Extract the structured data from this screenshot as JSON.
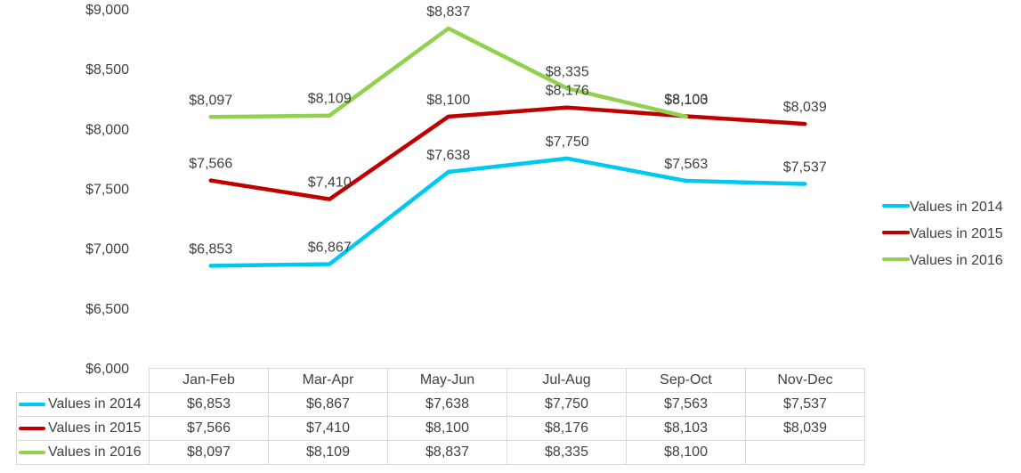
{
  "chart_data": {
    "type": "line",
    "categories": [
      "Jan-Feb",
      "Mar-Apr",
      "May-Jun",
      "Jul-Aug",
      "Sep-Oct",
      "Nov-Dec"
    ],
    "series": [
      {
        "name": "Values in 2014",
        "color": "#00c8f0",
        "values": [
          6853,
          6867,
          7638,
          7750,
          7563,
          7537
        ],
        "labels": [
          "$6,853",
          "$6,867",
          "$7,638",
          "$7,750",
          "$7,563",
          "$7,537"
        ]
      },
      {
        "name": "Values in 2015",
        "color": "#c00000",
        "values": [
          7566,
          7410,
          8100,
          8176,
          8103,
          8039
        ],
        "labels": [
          "$7,566",
          "$7,410",
          "$8,100",
          "$8,176",
          "$8,103",
          "$8,039"
        ]
      },
      {
        "name": "Values in 2016",
        "color": "#92d050",
        "values": [
          8097,
          8109,
          8837,
          8335,
          8100,
          null
        ],
        "labels": [
          "$8,097",
          "$8,109",
          "$8,837",
          "$8,335",
          "$8,100",
          ""
        ]
      }
    ],
    "ylim": [
      6000,
      9000
    ],
    "yticks": [
      6000,
      6500,
      7000,
      7500,
      8000,
      8500,
      9000
    ],
    "ytick_labels": [
      "$6,000",
      "$6,500",
      "$7,000",
      "$7,500",
      "$8,000",
      "$8,500",
      "$9,000"
    ],
    "title": "",
    "xlabel": "",
    "ylabel": "",
    "grid": false,
    "legend_position": "right",
    "data_table": true
  }
}
